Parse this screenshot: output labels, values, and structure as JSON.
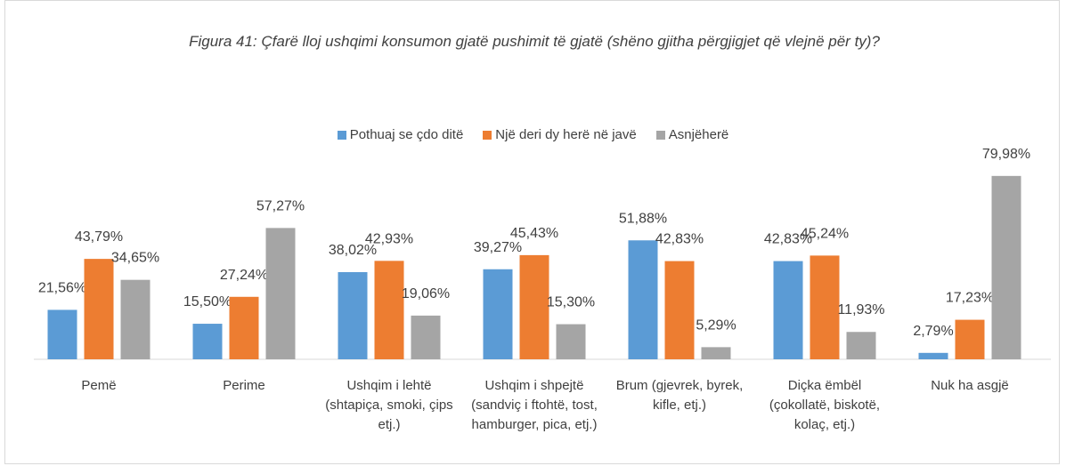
{
  "chart_data": {
    "type": "bar",
    "title": "Figura 41: Çfarë lloj ushqimi konsumon gjatë pushimit të gjatë (shëno gjitha përgjigjet që vlejnë për ty)?",
    "categories": [
      "Pemë",
      "Perime",
      "Ushqim i lehtë (shtapiça, smoki, çips etj.)",
      "Ushqim i shpejtë (sandviç i ftohtë, tost, hamburger, pica, etj.)",
      "Brum (gjevrek, byrek, kifle, etj.)",
      "Diçka ëmbël (çokollatë, biskotë, kolaç, etj.)",
      "Nuk ha asgjë"
    ],
    "series": [
      {
        "name": "Pothuaj se çdo ditë",
        "color": "#5b9bd5",
        "values": [
          21.56,
          15.5,
          38.02,
          39.27,
          51.88,
          42.83,
          2.79
        ],
        "value_labels": [
          "21,56%",
          "15,50%",
          "38,02%",
          "39,27%",
          "51,88%",
          "42,83%",
          "2,79%"
        ]
      },
      {
        "name": "Një deri dy herë në javë",
        "color": "#ed7d31",
        "values": [
          43.79,
          27.24,
          42.93,
          45.43,
          42.83,
          45.24,
          17.23
        ],
        "value_labels": [
          "43,79%",
          "27,24%",
          "42,93%",
          "45,43%",
          "42,83%",
          "45,24%",
          "17,23%"
        ]
      },
      {
        "name": "Asnjëherë",
        "color": "#a5a5a5",
        "values": [
          34.65,
          57.27,
          19.06,
          15.3,
          5.29,
          11.93,
          79.98
        ],
        "value_labels": [
          "34,65%",
          "57,27%",
          "19,06%",
          "15,30%",
          "5,29%",
          "11,93%",
          "79,98%"
        ]
      }
    ],
    "ylim": [
      0,
      90
    ]
  }
}
